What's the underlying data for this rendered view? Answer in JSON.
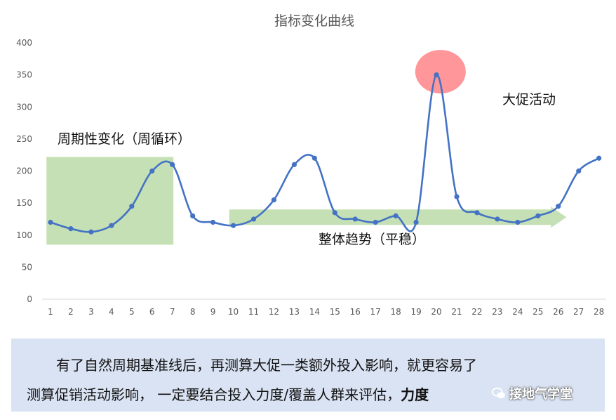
{
  "chart_data": {
    "type": "line",
    "title": "指标变化曲线",
    "xlabel": "",
    "ylabel": "",
    "x": [
      1,
      2,
      3,
      4,
      5,
      6,
      7,
      8,
      9,
      10,
      11,
      12,
      13,
      14,
      15,
      16,
      17,
      18,
      19,
      20,
      21,
      22,
      23,
      24,
      25,
      26,
      27,
      28
    ],
    "series": [
      {
        "name": "",
        "values": [
          120,
          110,
          105,
          115,
          145,
          200,
          210,
          130,
          120,
          115,
          125,
          155,
          210,
          220,
          135,
          125,
          120,
          130,
          120,
          350,
          160,
          135,
          125,
          120,
          130,
          145,
          200,
          220
        ]
      }
    ],
    "ylim": [
      0,
      400
    ],
    "yticks": [
      0,
      50,
      100,
      150,
      200,
      250,
      300,
      350,
      400
    ],
    "grid": false,
    "legend": "none",
    "colors": {
      "line": "#4472c4",
      "cycle_box": "#c5e0b4",
      "trend_arrow": "#c5e0b4",
      "peak_circle": "#ff7c80"
    },
    "highlights": {
      "cycle_box": {
        "x_start": 0.8,
        "x_end": 7.05,
        "y_low": 85,
        "y_high": 222
      },
      "trend_arrow": {
        "x_start": 9.8,
        "x_end": 26.4,
        "y_center": 128,
        "thickness": 22
      },
      "peak_circle": {
        "x": 20.2,
        "y": 355
      }
    },
    "annotations": {
      "cycle": "周期性变化（周循环）",
      "trend": "整体趋势（平稳）",
      "promo": "大促活动"
    }
  },
  "caption": {
    "line1": "有了自然周期基准线后，再测算大促一类额外投入影响，就更容易了",
    "line2": "测算促销活动影响， 一定要结合投入力度/覆盖人群来评估，",
    "line2_bold": "力度"
  },
  "watermark": {
    "text": "接地气学堂",
    "icon": "wechat-icon"
  }
}
